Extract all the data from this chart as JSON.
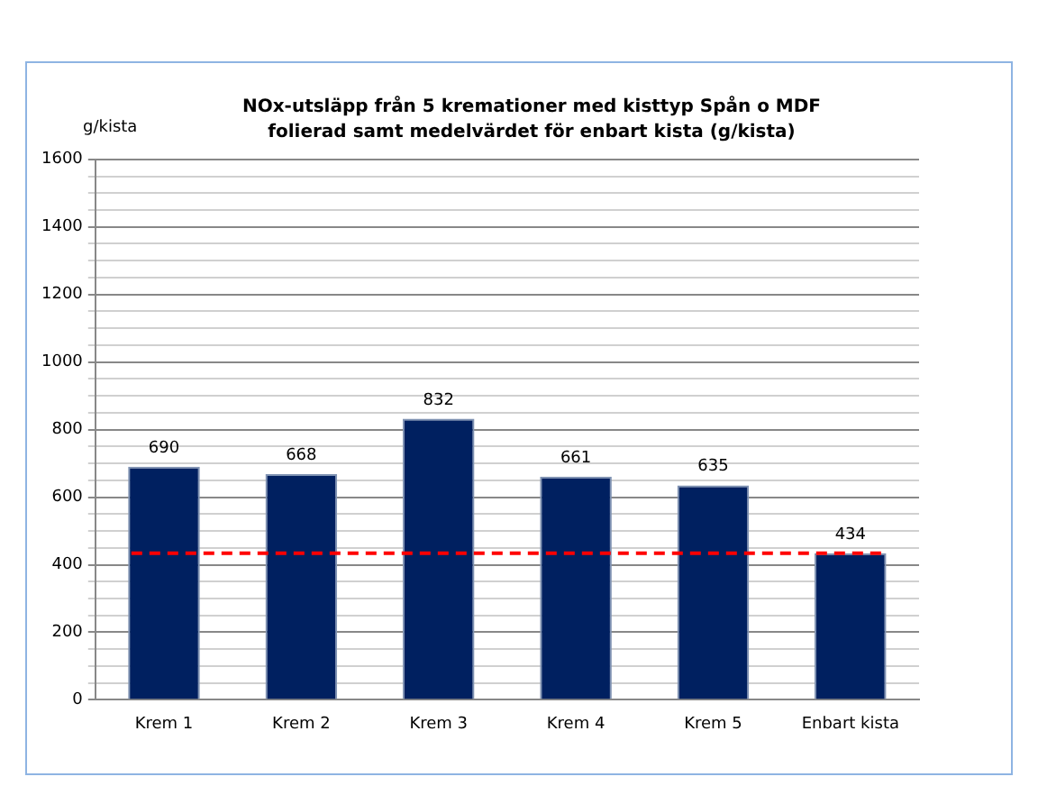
{
  "chart_data": {
    "type": "bar",
    "title": "NOx-utsläpp från 5 kremationer med kisttyp Spån o MDF folierad samt medelvärdet för enbart kista (g/kista)",
    "ylabel": "g/kista",
    "categories": [
      "Krem 1",
      "Krem 2",
      "Krem 3",
      "Krem 4",
      "Krem 5",
      "Enbart kista"
    ],
    "values": [
      690,
      668,
      832,
      661,
      635,
      434
    ],
    "color": "#002060",
    "data_labels": true,
    "ylim": [
      0,
      1600
    ],
    "yticks": [
      0,
      {
        "value": 50,
        "label": null
      },
      {
        "value": 100,
        "label": null
      },
      {
        "value": 150,
        "label": null
      },
      200,
      {
        "value": 250,
        "label": null
      },
      {
        "value": 300,
        "label": null
      },
      {
        "value": 350,
        "label": null
      },
      400,
      {
        "value": 450,
        "label": null
      },
      {
        "value": 500,
        "label": null
      },
      {
        "value": 550,
        "label": null
      },
      600,
      {
        "value": 650,
        "label": null
      },
      {
        "value": 700,
        "label": null
      },
      {
        "value": 750,
        "label": null
      },
      800,
      {
        "value": 850,
        "label": null
      },
      {
        "value": 900,
        "label": null
      },
      {
        "value": 950,
        "label": null
      },
      1000,
      {
        "value": 1050,
        "label": null
      },
      {
        "value": 1100,
        "label": null
      },
      {
        "value": 1150,
        "label": null
      },
      1200,
      {
        "value": 1250,
        "label": null
      },
      {
        "value": 1300,
        "label": null
      },
      {
        "value": 1350,
        "label": null
      },
      1400,
      {
        "value": 1450,
        "label": null
      },
      {
        "value": 1500,
        "label": null
      },
      {
        "value": 1550,
        "label": null
      },
      1600
    ],
    "grid": "y",
    "ref_lines": [
      {
        "axis": "y",
        "value": 434,
        "color": "#ff0000",
        "line_style": "dashed"
      }
    ],
    "legend": false
  }
}
